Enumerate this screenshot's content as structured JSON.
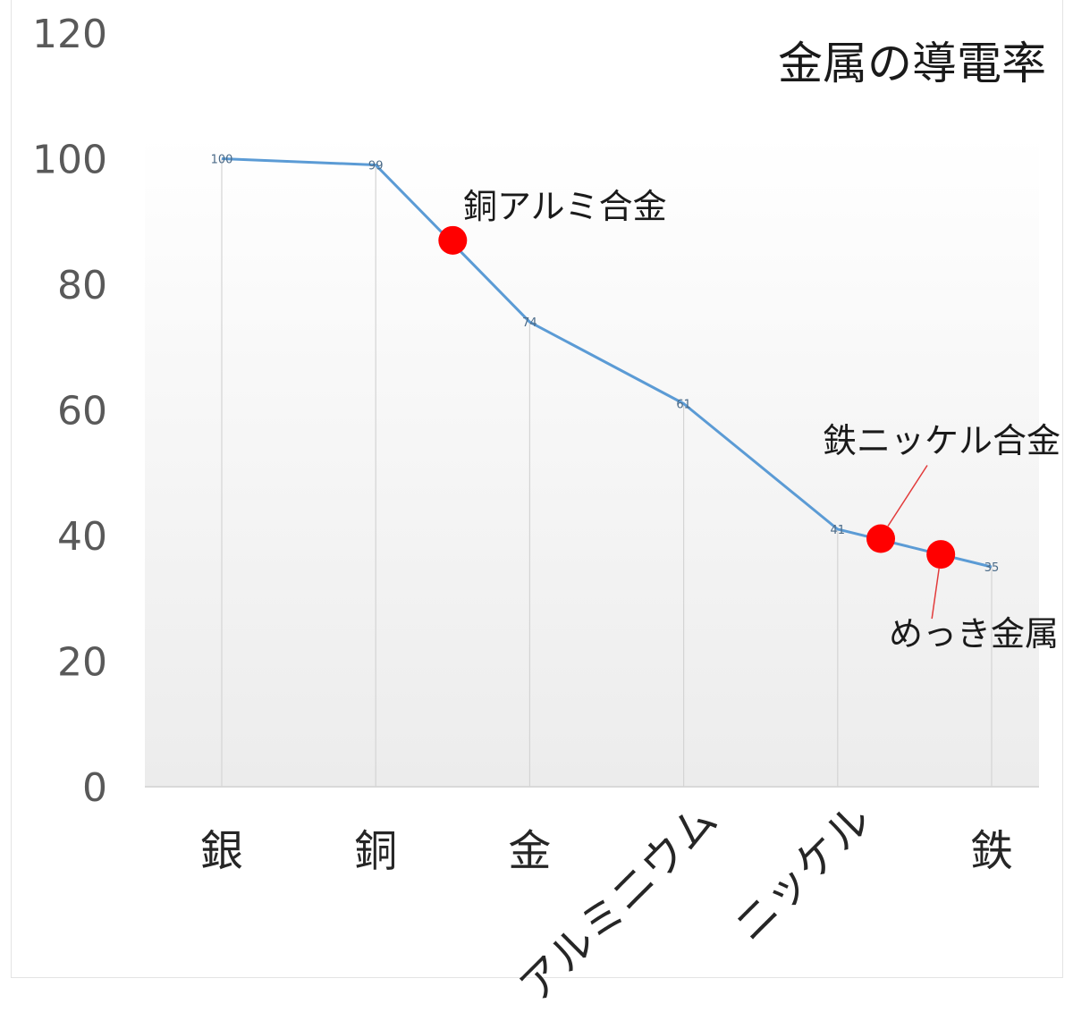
{
  "chart_data": {
    "type": "line",
    "title": "金属の導電率",
    "xlabel": "",
    "ylabel": "",
    "categories": [
      "銀",
      "銅",
      "金",
      "アルミニウム",
      "ニッケル",
      "鉄"
    ],
    "series": [
      {
        "values": [
          100,
          99,
          74,
          61,
          41,
          35
        ]
      }
    ],
    "data_labels": [
      "100",
      "99",
      "74",
      "61",
      "41",
      "35"
    ],
    "ylim": [
      0,
      120
    ],
    "yticks": [
      0,
      20,
      40,
      60,
      80,
      100,
      120
    ],
    "grid": "vertical lines at categories",
    "line_color": "#5b9bd5",
    "highlight_color": "#ff0000",
    "highlights": [
      {
        "label": "銅アルミ合金",
        "x": 1.5,
        "y": 87
      },
      {
        "label": "鉄ニッケル合金",
        "x": 4.28,
        "y": 39.5
      },
      {
        "label": "めっき金属",
        "x": 4.67,
        "y": 37
      }
    ]
  }
}
